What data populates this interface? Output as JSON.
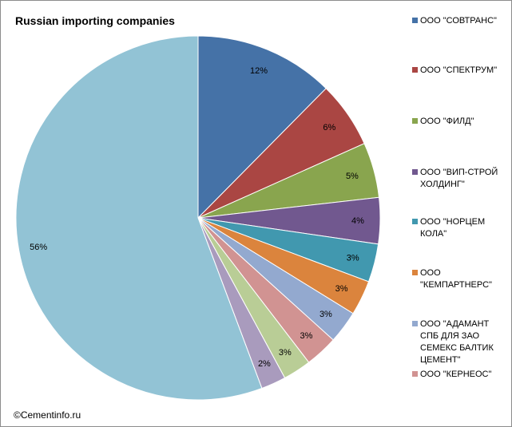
{
  "chart_data": {
    "type": "pie",
    "title": "Russian importing companies",
    "categories": [
      "ООО \"СОВТРАНС\"",
      "ООО \"СПЕКТРУМ\"",
      "ООО \"ФИЛД\"",
      "ООО \"ВИП-СТРОЙ ХОЛДИНГ\"",
      "ООО \"НОРЦЕМ КОЛА\"",
      "ООО \"КЕМПАРТНЕРС\"",
      "ООО \"АДАМАНТ СПБ ДЛЯ ЗАО СЕМЕКС БАЛТИК ЦЕМЕНТ\"",
      "ООО \"КЕРНЕОС\"",
      "",
      "",
      ""
    ],
    "values": [
      12.4,
      5.9,
      4.9,
      4.1,
      3.4,
      3.1,
      2.9,
      2.9,
      2.5,
      2.2,
      55.7
    ],
    "labels": [
      "12%",
      "6%",
      "5%",
      "4%",
      "3%",
      "3%",
      "3%",
      "3%",
      "3%",
      "2%",
      "56%"
    ],
    "colors": [
      "#4572a7",
      "#aa4643",
      "#89a54e",
      "#71588f",
      "#4198af",
      "#db843d",
      "#93a9cf",
      "#d19392",
      "#b9cd96",
      "#a99bbd",
      "#92c3d5"
    ],
    "legend_position": "right"
  },
  "copyright": "©Cementinfo.ru"
}
